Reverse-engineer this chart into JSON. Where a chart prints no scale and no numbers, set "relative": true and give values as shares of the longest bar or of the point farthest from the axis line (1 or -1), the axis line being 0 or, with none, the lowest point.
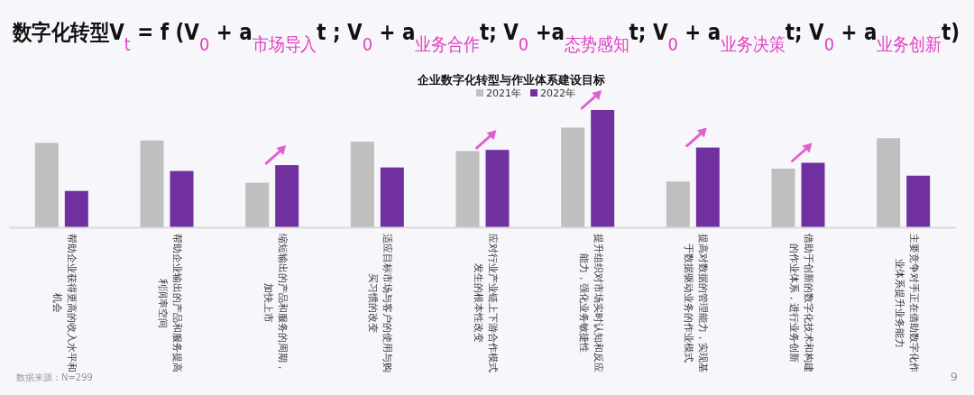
{
  "chart_data": {
    "type": "bar",
    "relative": true,
    "title": "数字化转型V$_{t}$ = f (V$_{0}$ + a$_{市场导入}$t ; V$_{0}$ + a$_{业务合作}$t; V$_{0}$ +a$_{态势感知}$t; V$_{0}$ + a$_{业务决策}$t; V$_{0}$ + a$_{业务创新}$t)",
    "subtitle": "企业数字化转型与作业体系建设目标",
    "categories": [
      "帮助企业获得更高的收入水平和机会",
      "帮助企业输出的产品和服务提高利润率空间",
      "缩短输出的产品和服务的周期，加快上市",
      "适应目标市场与客户的使用与购买习惯的改变",
      "应对行业产业链上下游合作模式发生的根本性改变",
      "提升组织对市场实时认知和反应能力，强化业务敏捷性",
      "提高对数据的管理能力，实现基于数据驱动业务的作业模式",
      "借助于创新的数字化技术和构建的作业体系，进行业务创新",
      "主要竞争对手正在借助数字化作业体系提升业务能力"
    ],
    "series": [
      {
        "name": "2021年",
        "color": "#bfbfbf",
        "values": [
          0.72,
          0.74,
          0.38,
          0.73,
          0.65,
          0.85,
          0.39,
          0.5,
          0.76
        ]
      },
      {
        "name": "2022年",
        "color": "#7030a0",
        "values": [
          0.31,
          0.48,
          0.53,
          0.51,
          0.66,
          1,
          0.68,
          0.55,
          0.44
        ]
      }
    ],
    "legend": "top",
    "annotations": [
      "数据来源：N=299",
      "9"
    ]
  }
}
